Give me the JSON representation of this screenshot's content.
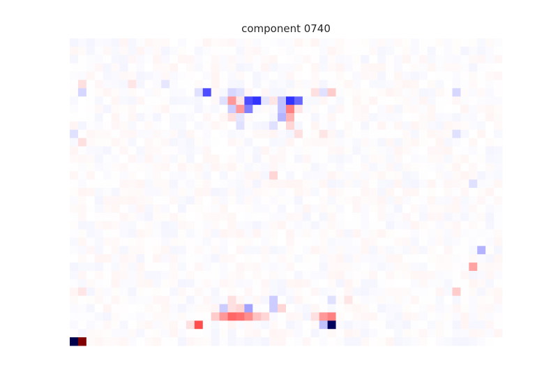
{
  "chart_data": {
    "type": "heatmap",
    "title": "component 0740",
    "xlabel": "",
    "ylabel": "",
    "grid": false,
    "legend": "none",
    "colormap": "seismic",
    "value_range": [
      -1,
      1
    ],
    "n_rows": 37,
    "n_cols": 52,
    "colors": {
      "negative_max": "#00004c",
      "zero": "#ffffff",
      "positive_max": "#800000"
    },
    "background_level": 0.02,
    "cells": [
      {
        "row": 36,
        "col": 0,
        "v": -1.0
      },
      {
        "row": 36,
        "col": 1,
        "v": 1.0
      },
      {
        "row": 34,
        "col": 31,
        "v": -0.95
      },
      {
        "row": 34,
        "col": 15,
        "v": 0.35
      },
      {
        "row": 34,
        "col": 30,
        "v": -0.12
      },
      {
        "row": 34,
        "col": 14,
        "v": 0.06
      },
      {
        "row": 33,
        "col": 19,
        "v": 0.3
      },
      {
        "row": 33,
        "col": 20,
        "v": 0.28
      },
      {
        "row": 33,
        "col": 21,
        "v": 0.22
      },
      {
        "row": 33,
        "col": 22,
        "v": 0.12
      },
      {
        "row": 33,
        "col": 18,
        "v": 0.2
      },
      {
        "row": 33,
        "col": 23,
        "v": 0.08
      },
      {
        "row": 33,
        "col": 31,
        "v": 0.25
      },
      {
        "row": 33,
        "col": 30,
        "v": 0.2
      },
      {
        "row": 33,
        "col": 17,
        "v": 0.1
      },
      {
        "row": 33,
        "col": 29,
        "v": 0.06
      },
      {
        "row": 32,
        "col": 21,
        "v": -0.18
      },
      {
        "row": 32,
        "col": 18,
        "v": -0.1
      },
      {
        "row": 32,
        "col": 20,
        "v": 0.08
      },
      {
        "row": 32,
        "col": 24,
        "v": -0.1
      },
      {
        "row": 32,
        "col": 25,
        "v": 0.08
      },
      {
        "row": 32,
        "col": 19,
        "v": 0.06
      },
      {
        "row": 31,
        "col": 24,
        "v": -0.1
      },
      {
        "row": 31,
        "col": 19,
        "v": 0.06
      },
      {
        "row": 31,
        "col": 31,
        "v": -0.06
      },
      {
        "row": 31,
        "col": 33,
        "v": 0.05
      },
      {
        "row": 30,
        "col": 46,
        "v": 0.1
      },
      {
        "row": 30,
        "col": 1,
        "v": 0.05
      },
      {
        "row": 27,
        "col": 48,
        "v": 0.18
      },
      {
        "row": 25,
        "col": 49,
        "v": -0.15
      },
      {
        "row": 17,
        "col": 48,
        "v": -0.06
      },
      {
        "row": 16,
        "col": 24,
        "v": 0.08
      },
      {
        "row": 12,
        "col": 1,
        "v": 0.06
      },
      {
        "row": 11,
        "col": 27,
        "v": 0.06
      },
      {
        "row": 11,
        "col": 30,
        "v": 0.05
      },
      {
        "row": 11,
        "col": 0,
        "v": -0.06
      },
      {
        "row": 11,
        "col": 46,
        "v": -0.06
      },
      {
        "row": 10,
        "col": 26,
        "v": 0.08
      },
      {
        "row": 10,
        "col": 24,
        "v": -0.06
      },
      {
        "row": 10,
        "col": 20,
        "v": -0.06
      },
      {
        "row": 9,
        "col": 26,
        "v": 0.15
      },
      {
        "row": 9,
        "col": 19,
        "v": 0.06
      },
      {
        "row": 9,
        "col": 25,
        "v": -0.15
      },
      {
        "row": 9,
        "col": 20,
        "v": -0.05
      },
      {
        "row": 8,
        "col": 19,
        "v": -0.1
      },
      {
        "row": 8,
        "col": 20,
        "v": 0.2
      },
      {
        "row": 8,
        "col": 21,
        "v": -0.25
      },
      {
        "row": 8,
        "col": 26,
        "v": 0.25
      },
      {
        "row": 8,
        "col": 25,
        "v": -0.12
      },
      {
        "row": 8,
        "col": 27,
        "v": 0.05
      },
      {
        "row": 7,
        "col": 18,
        "v": -0.06
      },
      {
        "row": 7,
        "col": 19,
        "v": 0.2
      },
      {
        "row": 7,
        "col": 21,
        "v": -0.35
      },
      {
        "row": 7,
        "col": 22,
        "v": -0.4
      },
      {
        "row": 7,
        "col": 23,
        "v": -0.05
      },
      {
        "row": 7,
        "col": 24,
        "v": 0.05
      },
      {
        "row": 7,
        "col": 25,
        "v": -0.12
      },
      {
        "row": 7,
        "col": 26,
        "v": -0.4
      },
      {
        "row": 7,
        "col": 27,
        "v": -0.3
      },
      {
        "row": 7,
        "col": 20,
        "v": 0.05
      },
      {
        "row": 6,
        "col": 16,
        "v": -0.35
      },
      {
        "row": 6,
        "col": 15,
        "v": -0.06
      },
      {
        "row": 6,
        "col": 19,
        "v": -0.08
      },
      {
        "row": 6,
        "col": 20,
        "v": -0.06
      },
      {
        "row": 6,
        "col": 29,
        "v": 0.06
      },
      {
        "row": 6,
        "col": 30,
        "v": -0.06
      },
      {
        "row": 6,
        "col": 31,
        "v": 0.1
      },
      {
        "row": 6,
        "col": 1,
        "v": -0.08
      },
      {
        "row": 6,
        "col": 46,
        "v": -0.08
      },
      {
        "row": 5,
        "col": 1,
        "v": 0.06
      },
      {
        "row": 5,
        "col": 7,
        "v": 0.05
      },
      {
        "row": 5,
        "col": 11,
        "v": -0.05
      }
    ]
  }
}
